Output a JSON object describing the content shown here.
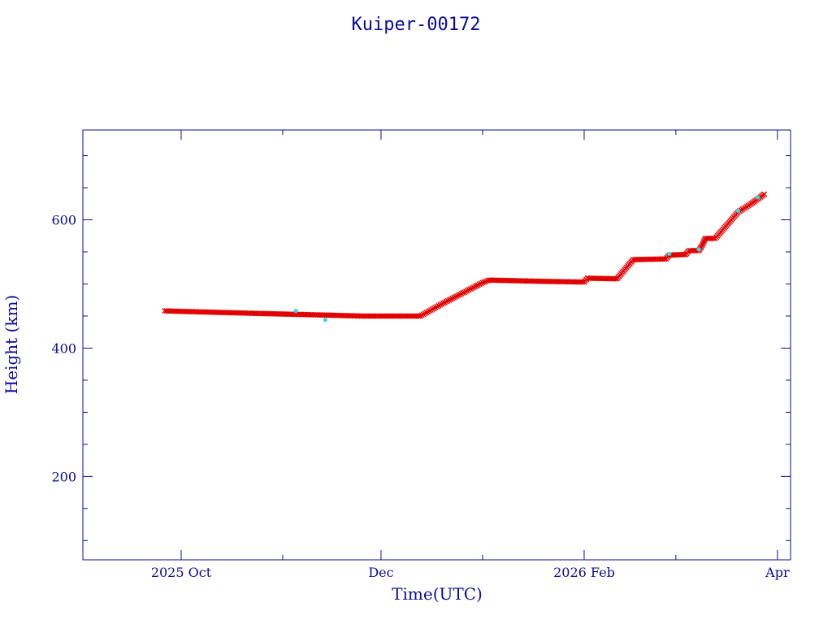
{
  "chart_data": {
    "type": "scatter",
    "title": "Kuiper-00172",
    "xlabel": "Time(UTC)",
    "ylabel": "Height (km)",
    "xlim": [
      "2025-09-01",
      "2026-04-05"
    ],
    "ylim": [
      70,
      740
    ],
    "x_ticks": [
      {
        "date": "2025-10-01",
        "label": "2025 Oct"
      },
      {
        "date": "2025-12-01",
        "label": "Dec"
      },
      {
        "date": "2026-02-01",
        "label": "2026 Feb"
      },
      {
        "date": "2026-04-01",
        "label": "Apr"
      }
    ],
    "x_minor_ticks": [
      "2025-09-01",
      "2025-11-01",
      "2026-01-01",
      "2026-03-01"
    ],
    "y_ticks": [
      200,
      400,
      600
    ],
    "y_minor_step": 50,
    "grid": false,
    "series": [
      {
        "color": "#e00000",
        "marker": "x",
        "points": [
          [
            "2025-09-26",
            458
          ],
          [
            "2025-10-10",
            456
          ],
          [
            "2025-10-25",
            454
          ],
          [
            "2025-11-10",
            452
          ],
          [
            "2025-11-25",
            450
          ],
          [
            "2025-12-13",
            450
          ],
          [
            "2025-12-20",
            470
          ],
          [
            "2025-12-26",
            486
          ],
          [
            "2026-01-01",
            502
          ],
          [
            "2026-01-03",
            506
          ],
          [
            "2026-01-20",
            504
          ],
          [
            "2026-02-01",
            503
          ],
          [
            "2026-02-02",
            509
          ],
          [
            "2026-02-11",
            508
          ],
          [
            "2026-02-16",
            538
          ],
          [
            "2026-02-26",
            539
          ],
          [
            "2026-02-27",
            545
          ],
          [
            "2026-03-04",
            546
          ],
          [
            "2026-03-05",
            552
          ],
          [
            "2026-03-08",
            552
          ],
          [
            "2026-03-09",
            560
          ],
          [
            "2026-03-10",
            571
          ],
          [
            "2026-03-13",
            571
          ],
          [
            "2026-03-20",
            612
          ],
          [
            "2026-03-24",
            625
          ],
          [
            "2026-03-28",
            640
          ]
        ]
      },
      {
        "color": "#3ad6e0",
        "marker": "dot",
        "points": [
          [
            "2025-11-05",
            458
          ],
          [
            "2025-11-14",
            444
          ],
          [
            "2026-02-27",
            547
          ],
          [
            "2026-03-08",
            554
          ],
          [
            "2026-03-20",
            614
          ],
          [
            "2026-03-26",
            635
          ]
        ]
      }
    ]
  }
}
